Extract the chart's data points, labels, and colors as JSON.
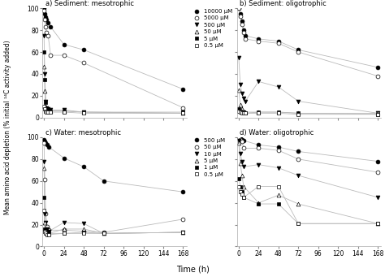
{
  "title_a": "a) Sediment: mesotrophic",
  "title_b": "b) Sediment: oligotrophic",
  "title_c": "c) Water: mesotrophic",
  "title_d": "d) Water: oligotrophic",
  "xlabel": "Time (h)",
  "ylabel": "Mean amino acid depletion (% initial ¹⁴C activity added)",
  "xlim": [
    -2,
    172
  ],
  "ylim": [
    0,
    100
  ],
  "xticks": [
    0,
    24,
    48,
    72,
    96,
    120,
    144,
    168
  ],
  "legend_ab": [
    "10000 μM",
    "5000 μM",
    "500 μM",
    "50 μM",
    "5 μM",
    "0.5 μM"
  ],
  "legend_cd": [
    "500 μM",
    "50 μM",
    "10 μM",
    "5 μM",
    "1 μM",
    "0.5 μM"
  ],
  "panel_a": {
    "10000": {
      "x": [
        0,
        1,
        2,
        3,
        5,
        8,
        24,
        48,
        168
      ],
      "y": [
        100,
        95,
        92,
        90,
        87,
        83,
        67,
        62,
        26
      ]
    },
    "5000": {
      "x": [
        0,
        1,
        2,
        3,
        5,
        8,
        24,
        48,
        168
      ],
      "y": [
        98,
        90,
        83,
        78,
        75,
        57,
        57,
        50,
        9
      ]
    },
    "500": {
      "x": [
        0,
        1,
        2,
        3,
        5,
        8,
        24,
        48,
        168
      ],
      "y": [
        75,
        40,
        15,
        9,
        8,
        7,
        7,
        5,
        5
      ]
    },
    "50": {
      "x": [
        0,
        1,
        2,
        3,
        5,
        8,
        24,
        48,
        168
      ],
      "y": [
        47,
        24,
        10,
        8,
        7,
        6,
        6,
        5,
        4
      ]
    },
    "5": {
      "x": [
        0,
        1,
        2,
        3,
        5,
        8,
        24,
        48,
        168
      ],
      "y": [
        60,
        35,
        14,
        9,
        7,
        6,
        6,
        5,
        4
      ]
    },
    "0.5": {
      "x": [
        0,
        1,
        2,
        3,
        5,
        8,
        24,
        48,
        168
      ],
      "y": [
        10,
        8,
        6,
        5,
        5,
        5,
        5,
        4,
        4
      ]
    }
  },
  "panel_b": {
    "10000": {
      "x": [
        0,
        2,
        4,
        6,
        8,
        24,
        48,
        72,
        168
      ],
      "y": [
        100,
        95,
        88,
        80,
        75,
        72,
        70,
        62,
        46
      ]
    },
    "5000": {
      "x": [
        0,
        2,
        4,
        6,
        8,
        24,
        48,
        72,
        168
      ],
      "y": [
        100,
        93,
        85,
        78,
        72,
        70,
        68,
        60,
        38
      ]
    },
    "500": {
      "x": [
        0,
        2,
        4,
        6,
        8,
        24,
        48,
        72,
        168
      ],
      "y": [
        55,
        30,
        22,
        18,
        15,
        33,
        28,
        15,
        4
      ]
    },
    "50": {
      "x": [
        0,
        2,
        4,
        6,
        8,
        24,
        48,
        72,
        168
      ],
      "y": [
        25,
        12,
        8,
        6,
        5,
        5,
        5,
        4,
        4
      ]
    },
    "5": {
      "x": [
        0,
        2,
        4,
        6,
        8,
        24,
        48,
        72,
        168
      ],
      "y": [
        8,
        6,
        5,
        5,
        4,
        5,
        5,
        4,
        3
      ]
    },
    "0.5": {
      "x": [
        0,
        2,
        4,
        6,
        8,
        24,
        48,
        72,
        168
      ],
      "y": [
        6,
        5,
        4,
        4,
        4,
        4,
        4,
        3,
        3
      ]
    }
  },
  "panel_c": {
    "500": {
      "x": [
        0,
        1,
        2,
        4,
        6,
        24,
        48,
        72,
        168
      ],
      "y": [
        98,
        96,
        95,
        93,
        91,
        81,
        73,
        60,
        50
      ]
    },
    "50": {
      "x": [
        0,
        1,
        2,
        4,
        6,
        24,
        48,
        72,
        168
      ],
      "y": [
        95,
        61,
        30,
        18,
        15,
        15,
        14,
        13,
        25
      ]
    },
    "10": {
      "x": [
        0,
        1,
        2,
        4,
        6,
        24,
        48,
        72,
        168
      ],
      "y": [
        78,
        30,
        22,
        16,
        14,
        22,
        21,
        12,
        13
      ]
    },
    "5": {
      "x": [
        0,
        1,
        2,
        4,
        6,
        24,
        48,
        72,
        168
      ],
      "y": [
        72,
        22,
        14,
        12,
        12,
        16,
        16,
        12,
        13
      ]
    },
    "1": {
      "x": [
        0,
        1,
        2,
        4,
        6,
        24,
        48,
        72,
        168
      ],
      "y": [
        45,
        16,
        13,
        12,
        12,
        12,
        13,
        12,
        13
      ]
    },
    "0.5": {
      "x": [
        0,
        1,
        2,
        4,
        6,
        24,
        48,
        72,
        168
      ],
      "y": [
        33,
        14,
        12,
        11,
        11,
        12,
        12,
        12,
        13
      ]
    }
  },
  "panel_d": {
    "500": {
      "x": [
        0,
        2,
        4,
        6,
        24,
        48,
        72,
        168
      ],
      "y": [
        100,
        99,
        98,
        97,
        93,
        91,
        87,
        78
      ]
    },
    "50": {
      "x": [
        0,
        2,
        4,
        6,
        24,
        48,
        72,
        168
      ],
      "y": [
        100,
        98,
        96,
        90,
        90,
        88,
        80,
        68
      ]
    },
    "10": {
      "x": [
        0,
        2,
        4,
        6,
        24,
        48,
        72,
        168
      ],
      "y": [
        97,
        85,
        78,
        73,
        75,
        72,
        65,
        45
      ]
    },
    "5": {
      "x": [
        0,
        2,
        4,
        6,
        24,
        48,
        72,
        168
      ],
      "y": [
        95,
        76,
        65,
        55,
        40,
        47,
        39,
        21
      ]
    },
    "1": {
      "x": [
        0,
        2,
        4,
        6,
        24,
        48,
        72,
        168
      ],
      "y": [
        62,
        55,
        50,
        45,
        39,
        39,
        21,
        21
      ]
    },
    "0.5": {
      "x": [
        0,
        2,
        4,
        6,
        24,
        48,
        72,
        168
      ],
      "y": [
        55,
        50,
        48,
        45,
        55,
        55,
        21,
        21
      ]
    }
  },
  "line_color": "#bbbbbb"
}
